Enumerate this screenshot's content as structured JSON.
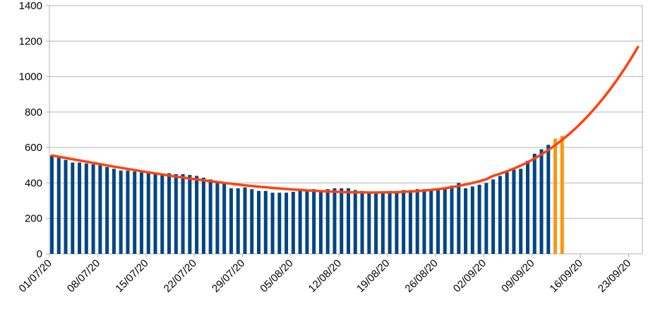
{
  "chart_data": {
    "type": "bar",
    "categories": [
      "01/07/20",
      null,
      null,
      null,
      null,
      null,
      null,
      "08/07/20",
      null,
      null,
      null,
      null,
      null,
      null,
      "15/07/20",
      null,
      null,
      null,
      null,
      null,
      null,
      "22/07/20",
      null,
      null,
      null,
      null,
      null,
      null,
      "29/07/20",
      null,
      null,
      null,
      null,
      null,
      null,
      "05/08/20",
      null,
      null,
      null,
      null,
      null,
      null,
      "12/08/20",
      null,
      null,
      null,
      null,
      null,
      null,
      "19/08/20",
      null,
      null,
      null,
      null,
      null,
      null,
      "26/08/20",
      null,
      null,
      null,
      null,
      null,
      null,
      "02/09/20",
      null,
      null,
      null,
      null,
      null,
      null,
      "09/09/20",
      null,
      null,
      null,
      null,
      null,
      null,
      "16/09/20",
      null,
      null,
      null,
      null,
      null,
      null,
      "23/09/20",
      null
    ],
    "series": [
      {
        "type": "bar",
        "color": "#004586",
        "values": [
          555,
          545,
          530,
          515,
          515,
          510,
          505,
          500,
          490,
          480,
          470,
          470,
          465,
          460,
          460,
          455,
          450,
          455,
          450,
          450,
          445,
          440,
          430,
          420,
          410,
          395,
          370,
          370,
          375,
          365,
          355,
          355,
          345,
          345,
          345,
          350,
          355,
          355,
          365,
          360,
          365,
          370,
          370,
          370,
          360,
          355,
          350,
          350,
          350,
          355,
          355,
          360,
          360,
          365,
          365,
          365,
          365,
          370,
          385,
          400,
          370,
          380,
          390,
          400,
          420,
          440,
          460,
          475,
          480,
          525,
          565,
          590,
          615,
          null,
          null,
          null,
          null,
          null,
          null,
          null,
          null,
          null,
          null,
          null,
          null,
          null
        ]
      },
      {
        "type": "bar",
        "color": "#ff950e",
        "values": [
          null,
          null,
          null,
          null,
          null,
          null,
          null,
          null,
          null,
          null,
          null,
          null,
          null,
          null,
          null,
          null,
          null,
          null,
          null,
          null,
          null,
          null,
          null,
          null,
          null,
          null,
          null,
          null,
          null,
          null,
          null,
          null,
          null,
          null,
          null,
          null,
          null,
          null,
          null,
          null,
          null,
          null,
          null,
          null,
          null,
          null,
          null,
          null,
          null,
          null,
          null,
          null,
          null,
          null,
          null,
          null,
          null,
          null,
          null,
          null,
          null,
          null,
          null,
          null,
          null,
          null,
          null,
          null,
          null,
          null,
          null,
          null,
          null,
          650,
          665,
          null,
          null,
          null,
          null,
          null,
          null,
          null,
          null,
          null,
          null,
          null
        ]
      },
      {
        "type": "line",
        "color": "#ff420e",
        "values": [
          555,
          548,
          541,
          534,
          527,
          520,
          513,
          506,
          499,
          492,
          486,
          479,
          473,
          466,
          460,
          454,
          448,
          442,
          436,
          431,
          425,
          420,
          415,
          410,
          405,
          400,
          396,
          391,
          387,
          383,
          379,
          376,
          372,
          369,
          366,
          363,
          361,
          358,
          356,
          354,
          352,
          351,
          349,
          348,
          347,
          347,
          346,
          346,
          347,
          347,
          348,
          350,
          352,
          354,
          357,
          361,
          365,
          370,
          376,
          383,
          391,
          400,
          410,
          421,
          440,
          452,
          466,
          481,
          498,
          517,
          538,
          561,
          586,
          613,
          643,
          675,
          710,
          748,
          789,
          833,
          880,
          930,
          984,
          1041,
          1102,
          1167
        ]
      }
    ],
    "ylim": [
      0,
      1400
    ],
    "yticks": [
      0,
      200,
      400,
      600,
      800,
      1000,
      1200,
      1400
    ],
    "grid": true
  }
}
